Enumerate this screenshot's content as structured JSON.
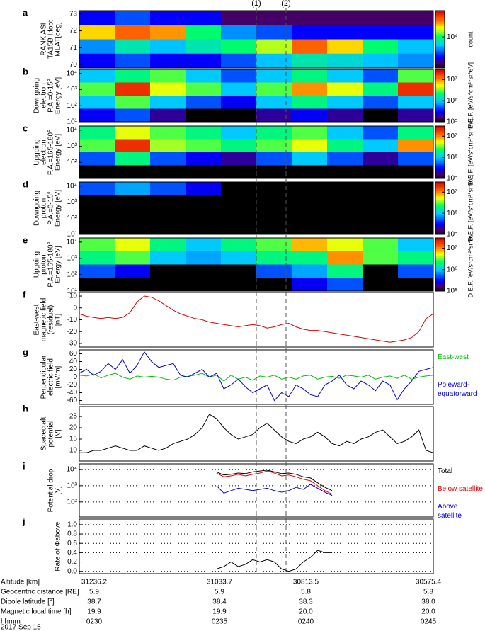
{
  "chart_data": [
    {
      "type": "heatmap",
      "label": "a",
      "ylabel": [
        "RANK ASI",
        "TA15B I.foot",
        "MLAT[deg]"
      ],
      "ylim": [
        69.8,
        73.2
      ],
      "yticks": [
        70,
        71,
        72,
        73
      ],
      "z": [
        [
          3000.0,
          4000.0,
          3000.0,
          3000.0,
          2000.0,
          2000.0,
          2000.0,
          2000.0,
          2000.0,
          2000.0
        ],
        [
          20000.0,
          30000.0,
          25000.0,
          10000.0,
          5000.0,
          4000.0,
          3000.0,
          3000.0,
          3000.0,
          3000.0
        ],
        [
          5000.0,
          8000.0,
          6000.0,
          8000.0,
          10000.0,
          15000.0,
          30000.0,
          20000.0,
          10000.0,
          6000.0
        ],
        [
          3000.0,
          4000.0,
          3000.0,
          3000.0,
          4000.0,
          6000.0,
          8000.0,
          7000.0,
          6000.0,
          5000.0
        ]
      ],
      "colorbar": {
        "label": "count",
        "zlim": [
          1500,
          50000
        ],
        "ticks": [
          {
            "value": 10000,
            "label": "10⁴"
          }
        ]
      }
    },
    {
      "type": "heatmap",
      "label": "b",
      "ylabel": [
        "Downgoing",
        "electron",
        "P.A.=0-15°",
        "Energy [eV]"
      ],
      "log": true,
      "ylim": [
        10,
        18000
      ],
      "yticks": [
        {
          "value": 10000,
          "label": "10⁴"
        },
        {
          "value": 1000,
          "label": "10³"
        },
        {
          "value": 100,
          "label": "10²"
        },
        {
          "value": 10,
          "label": "10¹"
        }
      ],
      "z": [
        [
          1000000.0,
          2000000.0,
          3000000.0,
          1000000.0,
          500000.0,
          1000000.0,
          2000000.0,
          1000000.0,
          500000.0,
          3000000.0
        ],
        [
          3000000.0,
          20000000.0,
          5000000.0,
          3000000.0,
          1000000.0,
          3000000.0,
          10000000.0,
          5000000.0,
          2000000.0,
          20000000.0
        ],
        [
          1000000.0,
          3000000.0,
          1000000.0,
          500000.0,
          300000.0,
          1000000.0,
          2000000.0,
          1000000.0,
          500000.0,
          1000000.0
        ],
        [
          300000.0,
          500000.0,
          200000.0,
          100000.0,
          100000.0,
          200000.0,
          300000.0,
          200000.0,
          100000.0,
          200000.0
        ]
      ],
      "colorbar": {
        "label": "D.E.F. [eV/s*cm²*sr*eV]",
        "zlim": [
          100000,
          30000000
        ],
        "ticks": [
          {
            "value": 10000000,
            "label": "10⁷"
          },
          {
            "value": 1000000,
            "label": "10⁶"
          },
          {
            "value": 100000,
            "label": "10⁵"
          }
        ]
      }
    },
    {
      "type": "heatmap",
      "label": "c",
      "ylabel": [
        "Upgoing",
        "electron",
        "P.A.=165-180°",
        "Energy [eV]"
      ],
      "log": true,
      "ylim": [
        10,
        18000
      ],
      "yticks": [
        {
          "value": 10000,
          "label": "10⁴"
        },
        {
          "value": 1000,
          "label": "10³"
        },
        {
          "value": 100,
          "label": "10²"
        }
      ],
      "z": [
        [
          2000000.0,
          5000000.0,
          3000000.0,
          2000000.0,
          1000000.0,
          2000000.0,
          3000000.0,
          1000000.0,
          500000.0,
          2000000.0
        ],
        [
          3000000.0,
          20000000.0,
          4000000.0,
          3000000.0,
          2000000.0,
          3000000.0,
          5000000.0,
          2000000.0,
          1000000.0,
          10000000.0
        ],
        [
          500000.0,
          2000000.0,
          500000.0,
          300000.0,
          200000.0,
          500000.0,
          1000000.0,
          500000.0,
          200000.0,
          500000.0
        ],
        [
          10000.0,
          10000.0,
          10000.0,
          10000.0,
          10000.0,
          10000.0,
          10000.0,
          10000.0,
          10000.0,
          10000.0
        ]
      ],
      "colorbar": {
        "label": "D.E.F. [eV/s*cm²*sr*eV]",
        "zlim": [
          100000,
          30000000
        ],
        "ticks": [
          {
            "value": 10000000,
            "label": "10⁷"
          },
          {
            "value": 1000000,
            "label": "10⁶"
          },
          {
            "value": 100000,
            "label": "10⁵"
          }
        ]
      }
    },
    {
      "type": "heatmap",
      "label": "d",
      "ylabel": [
        "Downgoing",
        "proton",
        "P.A.=0-15°",
        "Energy [eV]"
      ],
      "log": true,
      "ylim": [
        10,
        18000
      ],
      "yticks": [
        {
          "value": 10000,
          "label": "10⁴"
        },
        {
          "value": 1000,
          "label": "10³"
        },
        {
          "value": 100,
          "label": "10²"
        },
        {
          "value": 10,
          "label": "10¹"
        }
      ],
      "z": [
        [
          500000.0,
          800000.0,
          500000.0,
          300000.0,
          10000.0,
          10000.0,
          10000.0,
          10000.0,
          10000.0,
          10000.0
        ],
        [
          10000.0,
          10000.0,
          10000.0,
          10000.0,
          10000.0,
          10000.0,
          10000.0,
          10000.0,
          10000.0,
          10000.0
        ],
        [
          10000.0,
          10000.0,
          10000.0,
          10000.0,
          10000.0,
          10000.0,
          10000.0,
          10000.0,
          10000.0,
          10000.0
        ],
        [
          10000.0,
          10000.0,
          10000.0,
          10000.0,
          10000.0,
          10000.0,
          10000.0,
          10000.0,
          10000.0,
          10000.0
        ]
      ],
      "colorbar": {
        "label": "D.E.F. [eV/s*cm²*sr*eV]",
        "zlim": [
          100000,
          30000000
        ],
        "ticks": [
          {
            "value": 10000000,
            "label": "10⁷"
          },
          {
            "value": 1000000,
            "label": "10⁶"
          },
          {
            "value": 100000,
            "label": "10⁵"
          }
        ]
      }
    },
    {
      "type": "heatmap",
      "label": "e",
      "ylabel": [
        "Upgoing",
        "proton",
        "P.A.=165-180°",
        "Energy [eV]"
      ],
      "log": true,
      "ylim": [
        10,
        18000
      ],
      "yticks": [
        {
          "value": 10000,
          "label": "10⁴"
        },
        {
          "value": 1000,
          "label": "10³"
        },
        {
          "value": 100,
          "label": "10²"
        },
        {
          "value": 10,
          "label": "10¹"
        }
      ],
      "z": [
        [
          3000000.0,
          5000000.0,
          2000000.0,
          1000000.0,
          2000000.0,
          3000000.0,
          8000000.0,
          5000000.0,
          3000000.0,
          1000000.0
        ],
        [
          2000000.0,
          3000000.0,
          1000000.0,
          800000.0,
          1000000.0,
          2000000.0,
          2000000.0,
          10000000.0,
          3000000.0,
          2000000.0
        ],
        [
          500000.0,
          300000.0,
          10000.0,
          10000.0,
          10000.0,
          500000.0,
          800000.0,
          2000000.0,
          10000.0,
          500000.0
        ],
        [
          10000.0,
          10000.0,
          10000.0,
          10000.0,
          10000.0,
          10000.0,
          300000.0,
          500000.0,
          10000.0,
          10000.0
        ]
      ],
      "colorbar": {
        "label": "D.E.F. [eV/s*cm²*sr*eV]",
        "zlim": [
          100000,
          30000000
        ],
        "ticks": [
          {
            "value": 10000000,
            "label": "10⁷"
          },
          {
            "value": 1000000,
            "label": "10⁶"
          },
          {
            "value": 100000,
            "label": "10⁵"
          }
        ]
      }
    },
    {
      "type": "line",
      "label": "f",
      "ylabel": [
        "East-west",
        "magnetic field",
        "(residual)",
        "[nT]"
      ],
      "ylim": [
        -33,
        13
      ],
      "yticks": [
        10,
        0,
        -10,
        -20,
        -30
      ],
      "series": [
        {
          "color": "#e00000",
          "values": [
            -5,
            -7,
            -8,
            -9,
            -8,
            -9,
            -8,
            -4,
            5,
            10,
            9,
            6,
            2,
            -2,
            -5,
            -7,
            -9,
            -10,
            -12,
            -13,
            -14,
            -15,
            -16,
            -15,
            -14,
            -15,
            -17,
            -16,
            -14,
            -13,
            -16,
            -18,
            -19,
            -19,
            -20,
            -21,
            -22,
            -23,
            -24,
            -25,
            -26,
            -27,
            -28,
            -29,
            -28,
            -27,
            -25,
            -20,
            -9,
            -5
          ]
        }
      ]
    },
    {
      "type": "line",
      "label": "g",
      "ylabel": [
        "Perpendicular",
        "electric field",
        "[mV/m]"
      ],
      "ylim": [
        -70,
        70
      ],
      "yticks": [
        60,
        40,
        20,
        0,
        -20,
        -40,
        -60
      ],
      "series": [
        {
          "name": "East-west",
          "color": "#00c000",
          "values": [
            5,
            3,
            8,
            -2,
            5,
            10,
            0,
            -5,
            3,
            0,
            2,
            0,
            -5,
            -8,
            0,
            2,
            5,
            10,
            0,
            5,
            -10,
            5,
            -5,
            0,
            -8,
            3,
            0,
            5,
            -5,
            0,
            -5,
            3,
            5,
            -5,
            0,
            2,
            -3,
            5,
            3,
            0,
            5,
            -5,
            0,
            3,
            -3,
            5,
            -5,
            0,
            3,
            5
          ]
        },
        {
          "name": "Poleward-equatorward",
          "color": "#0000e0",
          "values": [
            10,
            20,
            5,
            15,
            35,
            20,
            45,
            10,
            30,
            65,
            40,
            25,
            30,
            35,
            5,
            0,
            10,
            20,
            0,
            10,
            -30,
            -20,
            -5,
            -25,
            -40,
            -30,
            -20,
            -60,
            -40,
            -50,
            -20,
            -30,
            -45,
            -50,
            -20,
            -10,
            5,
            -20,
            -30,
            -10,
            -20,
            -35,
            -10,
            -20,
            -58,
            -30,
            -10,
            15,
            20,
            25
          ]
        }
      ]
    },
    {
      "type": "line",
      "label": "h",
      "ylabel": [
        "Spacecraft",
        "potential",
        "[V]"
      ],
      "ylim": [
        5.3,
        29.4
      ],
      "yticks": [
        25,
        20,
        15,
        10
      ],
      "series": [
        {
          "color": "#000000",
          "values": [
            9,
            9,
            10,
            10,
            11,
            12,
            11,
            10,
            10,
            12,
            11,
            10,
            11,
            13,
            14,
            15,
            17,
            20,
            26,
            24,
            20,
            17,
            15,
            16,
            17,
            20,
            22,
            19,
            16,
            14,
            13,
            15,
            16,
            18,
            16,
            13,
            12,
            14,
            13,
            15,
            16,
            18,
            19,
            16,
            13,
            14,
            16,
            19,
            10,
            9
          ]
        }
      ]
    },
    {
      "type": "line",
      "label": "i",
      "ylabel": [
        "Potential drop",
        "[V]"
      ],
      "log": true,
      "grid": true,
      "ylim": [
        12,
        22000
      ],
      "yticks": [
        {
          "value": 10000,
          "label": "10⁴"
        },
        {
          "value": 1000,
          "label": "10³"
        },
        {
          "value": 100,
          "label": "10²"
        }
      ],
      "series": [
        {
          "name": "Total",
          "color": "#000000",
          "values": [
            null,
            null,
            null,
            null,
            null,
            null,
            null,
            null,
            null,
            null,
            null,
            null,
            null,
            null,
            null,
            null,
            null,
            null,
            null,
            7000,
            4500,
            5000,
            6000,
            5500,
            7000,
            8000,
            9000,
            7000,
            5500,
            6000,
            5000,
            3500,
            3000,
            1500,
            800,
            500,
            null,
            null,
            null,
            null,
            null,
            null,
            null,
            null,
            null,
            null,
            null,
            null,
            null,
            null
          ]
        },
        {
          "name": "Below satellite",
          "color": "#e00000",
          "values": [
            null,
            null,
            null,
            null,
            null,
            null,
            null,
            null,
            null,
            null,
            null,
            null,
            null,
            null,
            null,
            null,
            null,
            null,
            null,
            6000,
            3500,
            4000,
            5000,
            4000,
            5000,
            6000,
            8000,
            6000,
            4000,
            4500,
            3500,
            2500,
            2000,
            1000,
            500,
            300,
            null,
            null,
            null,
            null,
            null,
            null,
            null,
            null,
            null,
            null,
            null,
            null,
            null,
            null
          ]
        },
        {
          "name": "Above satellite",
          "color": "#0000e0",
          "values": [
            null,
            null,
            null,
            null,
            null,
            null,
            null,
            null,
            null,
            null,
            null,
            null,
            null,
            null,
            null,
            null,
            null,
            null,
            null,
            1000,
            350,
            500,
            700,
            600,
            500,
            600,
            700,
            500,
            400,
            500,
            800,
            600,
            1200,
            700,
            400,
            250,
            null,
            null,
            null,
            null,
            null,
            null,
            null,
            null,
            null,
            null,
            null,
            null,
            null,
            null
          ]
        }
      ]
    },
    {
      "type": "line",
      "label": "j",
      "ylabel": [
        "Rate of Φabove"
      ],
      "grid": true,
      "ylim": [
        -0.05,
        1.12
      ],
      "yticks": [
        {
          "value": 1,
          "label": "1.0"
        },
        0.8,
        0.6,
        0.4,
        0.2,
        {
          "value": 0,
          "label": "0.0"
        }
      ],
      "series": [
        {
          "color": "#000000",
          "values": [
            null,
            null,
            null,
            null,
            null,
            null,
            null,
            null,
            null,
            null,
            null,
            null,
            null,
            null,
            null,
            null,
            null,
            null,
            null,
            0.05,
            0.1,
            0.2,
            0.1,
            0.15,
            0.25,
            0.2,
            0.25,
            0.2,
            0.05,
            0.0,
            0.05,
            0.2,
            0.3,
            0.45,
            0.4,
            0.4,
            null,
            null,
            null,
            null,
            null,
            null,
            null,
            null,
            null,
            null,
            null,
            null,
            null,
            null
          ]
        }
      ]
    }
  ],
  "markers": [
    "(1)",
    "(2)"
  ],
  "table": {
    "rows": [
      [
        "Altitude [km]",
        "31236.2",
        "31033.7",
        "30813.5",
        "30575.4"
      ],
      [
        "Geocentric distance [RE]",
        "5.9",
        "5.9",
        "5.8",
        "5.8"
      ],
      [
        "Dipole latitude [°]",
        "38.7",
        "38.4",
        "38.3",
        "38.0"
      ],
      [
        "Magnetic local time [h]",
        "19.9",
        "19.9",
        "20.0",
        "20.0"
      ],
      [
        "hhmm",
        "0230",
        "0235",
        "0240",
        "0245"
      ]
    ],
    "date": "2017 Sep 15"
  }
}
